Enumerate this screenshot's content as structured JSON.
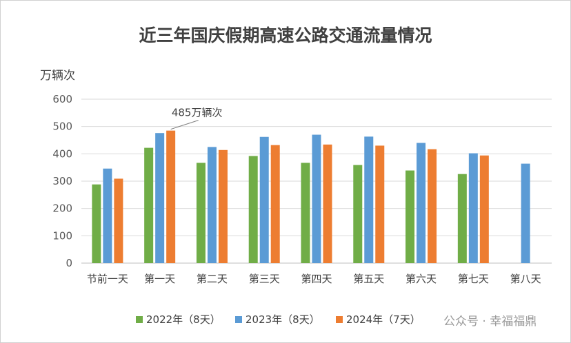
{
  "watermark": "公众号 · 幸福福鼎",
  "colors": {
    "grid": "#d9d9d9",
    "axis": "#bfbfbf"
  },
  "chart_data": {
    "type": "bar",
    "title": "近三年国庆假期高速公路交通流量情况",
    "ylabel": "万辆次",
    "ylim": [
      0,
      600
    ],
    "yticks": [
      0,
      100,
      200,
      300,
      400,
      500,
      600
    ],
    "grid": true,
    "legend_position": "bottom",
    "categories": [
      "节前一天",
      "第一天",
      "第二天",
      "第三天",
      "第四天",
      "第五天",
      "第六天",
      "第七天",
      "第八天"
    ],
    "series": [
      {
        "name": "2022年（8天）",
        "color": "#70ad47",
        "values": [
          288,
          422,
          367,
          392,
          367,
          359,
          339,
          326,
          null
        ]
      },
      {
        "name": "2023年（8天）",
        "color": "#5b9bd5",
        "values": [
          346,
          476,
          425,
          462,
          470,
          463,
          440,
          402,
          364
        ]
      },
      {
        "name": "2024年（7天）",
        "color": "#ed7d31",
        "values": [
          309,
          485,
          414,
          432,
          434,
          430,
          417,
          394,
          null
        ]
      }
    ],
    "annotations": [
      {
        "text": "485万辆次",
        "category": "第一天",
        "series": "2024年（7天）",
        "value": 485
      }
    ]
  }
}
